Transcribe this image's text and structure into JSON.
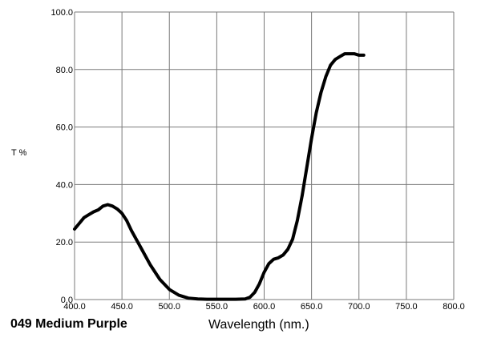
{
  "chart_data": {
    "type": "line",
    "title": "049 Medium Purple",
    "xlabel": "Wavelength (nm.)",
    "ylabel": "T %",
    "xlim": [
      400,
      800
    ],
    "ylim": [
      0,
      100
    ],
    "grid": true,
    "x_ticks": [
      "400.0",
      "450.0",
      "500.0",
      "550.0",
      "600.0",
      "650.0",
      "700.0",
      "750.0",
      "800.0"
    ],
    "y_ticks": [
      "0.0",
      "20.0",
      "40.0",
      "60.0",
      "80.0",
      "100.0"
    ],
    "series": [
      {
        "color": "#000000",
        "x": [
          400,
          405,
          410,
          415,
          420,
          425,
          430,
          435,
          440,
          445,
          450,
          455,
          460,
          470,
          480,
          490,
          500,
          510,
          520,
          530,
          540,
          550,
          560,
          570,
          580,
          585,
          590,
          595,
          600,
          605,
          610,
          615,
          620,
          625,
          630,
          635,
          640,
          645,
          650,
          655,
          660,
          665,
          670,
          675,
          680,
          685,
          690,
          695,
          700,
          705
        ],
        "y": [
          24.5,
          26.5,
          28.5,
          29.5,
          30.5,
          31.2,
          32.5,
          33,
          32.5,
          31.5,
          30,
          27.5,
          24,
          18,
          12,
          7,
          3.5,
          1.5,
          0.5,
          0.2,
          0.1,
          0.1,
          0.1,
          0.1,
          0.2,
          0.8,
          2.5,
          5.5,
          9.5,
          12.5,
          14,
          14.5,
          15.5,
          17.5,
          21,
          27.5,
          36,
          46,
          56,
          65,
          72,
          77.5,
          81.5,
          83.5,
          84.5,
          85.5,
          85.5,
          85.5,
          85,
          85
        ]
      }
    ]
  }
}
